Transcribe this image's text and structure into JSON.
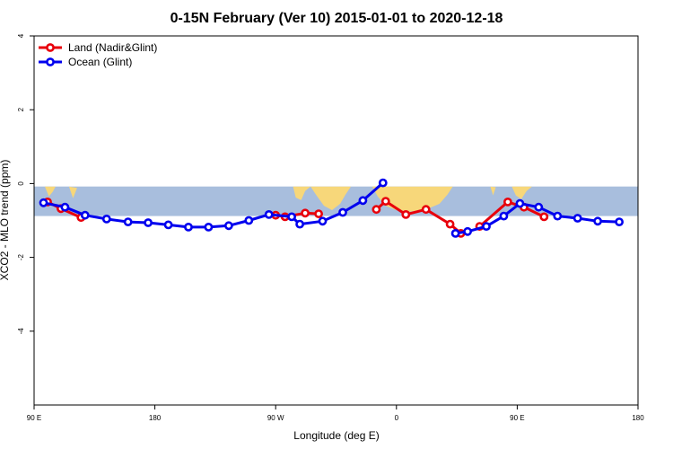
{
  "chart_data": {
    "type": "line",
    "title": "0-15N February (Ver 10)   2015-01-01 to 2020-12-18",
    "xlabel": "Longitude (deg E)",
    "ylabel": "XCO2 - MLO trend (ppm)",
    "xlim": [
      90,
      540
    ],
    "ylim": [
      -6,
      4
    ],
    "x_ticks": [
      {
        "value": 90,
        "label": "90 E"
      },
      {
        "value": 180,
        "label": "180"
      },
      {
        "value": 270,
        "label": "90 W"
      },
      {
        "value": 360,
        "label": "0"
      },
      {
        "value": 450,
        "label": "90 E"
      },
      {
        "value": 540,
        "label": "180"
      }
    ],
    "y_ticks": [
      {
        "value": -4,
        "label": "-4"
      },
      {
        "value": -2,
        "label": "-2"
      },
      {
        "value": 0,
        "label": "0"
      },
      {
        "value": 2,
        "label": "2"
      },
      {
        "value": 4,
        "label": "4"
      }
    ],
    "band": {
      "ymin": -0.88,
      "ymax": -0.08,
      "color": "#a8bedd",
      "land_color": "#f7d77a"
    },
    "legend_position": "top-left",
    "series": [
      {
        "name": "Land (Nadir&Glint)",
        "color": "#e8000b",
        "segments": [
          [
            [
              100,
              -0.5
            ],
            [
              110,
              -0.68
            ],
            [
              125,
              -0.92
            ]
          ],
          [
            [
              270,
              -0.86
            ],
            [
              277,
              -0.9
            ],
            [
              292,
              -0.8
            ],
            [
              302,
              -0.82
            ]
          ],
          [
            [
              345,
              -0.7
            ],
            [
              352,
              -0.48
            ],
            [
              367,
              -0.84
            ],
            [
              382,
              -0.7
            ],
            [
              400,
              -1.1
            ],
            [
              408,
              -1.35
            ]
          ],
          [
            [
              422,
              -1.16
            ],
            [
              443,
              -0.5
            ],
            [
              455,
              -0.64
            ],
            [
              470,
              -0.9
            ]
          ]
        ]
      },
      {
        "name": "Ocean (Glint)",
        "color": "#0000ee",
        "segments": [
          [
            [
              97,
              -0.52
            ],
            [
              113,
              -0.64
            ],
            [
              128,
              -0.86
            ],
            [
              144,
              -0.96
            ],
            [
              160,
              -1.04
            ],
            [
              175,
              -1.06
            ],
            [
              190,
              -1.12
            ],
            [
              205,
              -1.18
            ],
            [
              220,
              -1.18
            ],
            [
              235,
              -1.14
            ],
            [
              250,
              -1.0
            ],
            [
              265,
              -0.84
            ],
            [
              282,
              -0.9
            ],
            [
              288,
              -1.1
            ],
            [
              305,
              -1.02
            ],
            [
              320,
              -0.78
            ],
            [
              335,
              -0.46
            ],
            [
              350,
              0.02
            ]
          ],
          [
            [
              404,
              -1.35
            ],
            [
              413,
              -1.3
            ],
            [
              427,
              -1.16
            ],
            [
              440,
              -0.88
            ],
            [
              452,
              -0.54
            ],
            [
              466,
              -0.64
            ],
            [
              480,
              -0.88
            ],
            [
              495,
              -0.94
            ],
            [
              510,
              -1.02
            ],
            [
              526,
              -1.04
            ]
          ]
        ]
      }
    ]
  }
}
